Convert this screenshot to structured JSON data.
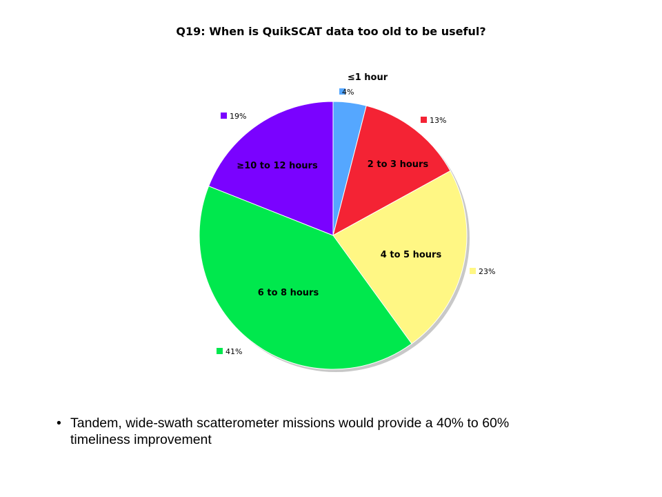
{
  "chart_data": {
    "type": "pie",
    "title": "Q19: When is QuikSCAT data too old to be useful?",
    "slices": [
      {
        "label": "≤1 hour",
        "value": 4,
        "pct_label": "4%",
        "color": "#55a7ff"
      },
      {
        "label": "2 to 3 hours",
        "value": 13,
        "pct_label": "13%",
        "color": "#f42334"
      },
      {
        "label": "4 to 5 hours",
        "value": 23,
        "pct_label": "23%",
        "color": "#fff784"
      },
      {
        "label": "6 to 8 hours",
        "value": 41,
        "pct_label": "41%",
        "color": "#00e84d"
      },
      {
        "label": "≥10 to 12 hours",
        "value": 19,
        "pct_label": "19%",
        "color": "#7a02ff"
      }
    ]
  },
  "bullet": {
    "mark": "•",
    "line1": "Tandem, wide-swath scatterometer missions would provide a 40% to 60%",
    "line2": "timeliness improvement"
  }
}
